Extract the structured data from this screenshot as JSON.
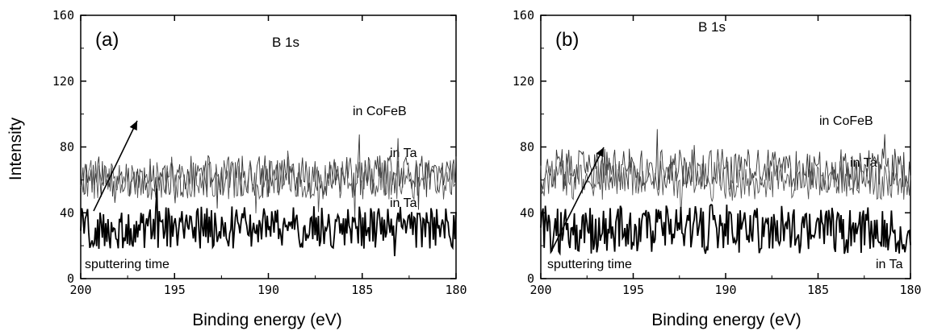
{
  "chart_data": [
    {
      "type": "line",
      "panel_label": "(a)",
      "title": "B 1s",
      "xlabel": "Binding energy (eV)",
      "ylabel": "Intensity",
      "xlim": [
        200,
        180
      ],
      "ylim": [
        0,
        160
      ],
      "xticks": [
        "200",
        "195",
        "190",
        "185",
        "180"
      ],
      "yticks": [
        "0",
        "40",
        "80",
        "120",
        "160"
      ],
      "series": [
        {
          "name": "in CoFeB",
          "style": "thin",
          "mean": 62,
          "noise": 13,
          "color": "#333333"
        },
        {
          "name": "in Ta",
          "style": "thin",
          "mean": 60,
          "noise": 12,
          "color": "#555555"
        },
        {
          "name": "in Ta",
          "style": "bold",
          "mean": 31,
          "noise": 13,
          "color": "#000000"
        }
      ],
      "annotations": [
        "in CoFeB",
        "in Ta",
        "in Ta",
        "sputtering time"
      ],
      "arrow_label": "sputtering time"
    },
    {
      "type": "line",
      "panel_label": "(b)",
      "title": "B 1s",
      "xlabel": "Binding energy (eV)",
      "ylabel": "",
      "xlim": [
        200,
        180
      ],
      "ylim": [
        0,
        160
      ],
      "xticks": [
        "200",
        "195",
        "190",
        "185",
        "180"
      ],
      "yticks": [
        "0",
        "40",
        "80",
        "120",
        "160"
      ],
      "series": [
        {
          "name": "in CoFeB",
          "style": "thin",
          "mean": 66,
          "noise": 13,
          "color": "#333333"
        },
        {
          "name": "in Ta",
          "style": "thin",
          "mean": 60,
          "noise": 12,
          "color": "#555555"
        },
        {
          "name": "in Ta",
          "style": "bold",
          "mean": 30,
          "noise": 15,
          "color": "#000000"
        }
      ],
      "annotations": [
        "in CoFeB",
        "in Ta",
        "in Ta",
        "sputtering time"
      ],
      "arrow_label": "sputtering time"
    }
  ]
}
